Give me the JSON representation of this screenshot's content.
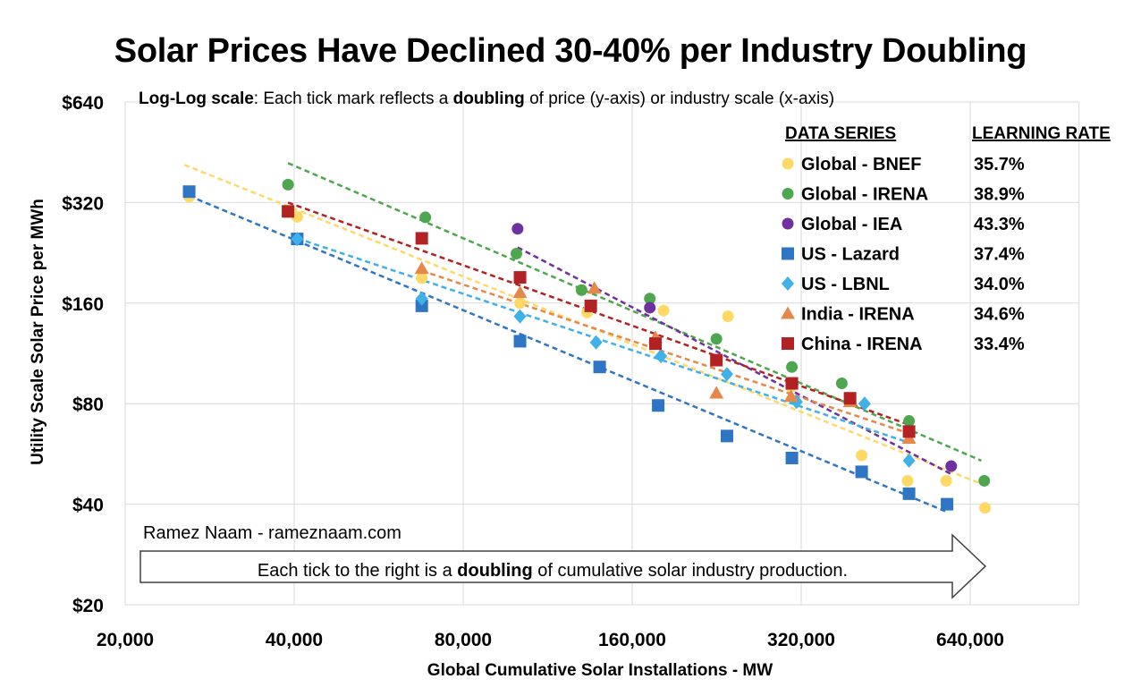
{
  "chart_data": {
    "type": "scatter",
    "title": "Solar Prices Have Declined 30-40% per Industry Doubling",
    "subtitle": {
      "bold_prefix": "Log-Log scale",
      "text_1": ": Each tick mark reflects a ",
      "bold_word": "doubling",
      "text_2": " of price (y-axis) or industry scale (x-axis)"
    },
    "xlabel": "Global Cumulative Solar Installations - MW",
    "ylabel": "Utility Scale Solar Price per MWh",
    "x_scale": "log2",
    "y_scale": "log2",
    "xlim": [
      20000,
      1000000
    ],
    "ylim": [
      20,
      640
    ],
    "x_ticks": [
      20000,
      40000,
      80000,
      160000,
      320000,
      640000
    ],
    "x_tick_labels": [
      "20,000",
      "40,000",
      "80,000",
      "160,000",
      "320,000",
      "640,000"
    ],
    "y_ticks": [
      20,
      40,
      80,
      160,
      320,
      640
    ],
    "y_tick_labels": [
      "$20",
      "$40",
      "$80",
      "$160",
      "$320",
      "$640"
    ],
    "grid": true,
    "legend_placement": "top-right",
    "legend_headers": [
      "DATA SERIES",
      "LEARNING RATE"
    ],
    "series": [
      {
        "name": "Global - BNEF",
        "learning_rate": "35.7%",
        "marker": "circle",
        "color": "#FFD966",
        "points": [
          [
            26000,
            333
          ],
          [
            40500,
            290
          ],
          [
            67500,
            190
          ],
          [
            101000,
            160
          ],
          [
            133000,
            150
          ],
          [
            182000,
            152
          ],
          [
            237000,
            146
          ],
          [
            307000,
            90
          ],
          [
            410000,
            56
          ],
          [
            495000,
            47
          ],
          [
            580000,
            47
          ],
          [
            680000,
            39
          ]
        ],
        "trend": [
          [
            25500,
            415
          ],
          [
            670000,
            46
          ]
        ]
      },
      {
        "name": "Global - IRENA",
        "learning_rate": "38.9%",
        "marker": "circle",
        "color": "#4EA74E",
        "points": [
          [
            39000,
            362
          ],
          [
            68500,
            289
          ],
          [
            99500,
            225
          ],
          [
            130000,
            175
          ],
          [
            172000,
            165
          ],
          [
            226000,
            125
          ],
          [
            308000,
            103
          ],
          [
            378000,
            92
          ],
          [
            498000,
            71
          ],
          [
            678000,
            47
          ]
        ],
        "trend": [
          [
            39000,
            420
          ],
          [
            670000,
            54
          ]
        ]
      },
      {
        "name": "Global - IEA",
        "learning_rate": "43.3%",
        "marker": "circle",
        "color": "#7030A0",
        "points": [
          [
            100000,
            267
          ],
          [
            172000,
            155
          ],
          [
            592000,
            52
          ]
        ],
        "trend": [
          [
            100000,
            235
          ],
          [
            595000,
            49
          ]
        ]
      },
      {
        "name": "US - Lazard",
        "learning_rate": "37.4%",
        "marker": "square",
        "color": "#2E75C4",
        "points": [
          [
            26000,
            345
          ],
          [
            40500,
            249
          ],
          [
            67500,
            157
          ],
          [
            101000,
            123
          ],
          [
            140000,
            103
          ],
          [
            178000,
            79
          ],
          [
            236000,
            64
          ],
          [
            308000,
            55
          ],
          [
            410000,
            50
          ],
          [
            498000,
            43
          ],
          [
            582000,
            40
          ]
        ],
        "trend": [
          [
            26000,
            335
          ],
          [
            580000,
            38
          ]
        ]
      },
      {
        "name": "US - LBNL",
        "learning_rate": "34.0%",
        "marker": "diamond",
        "color": "#3FB0E8",
        "points": [
          [
            40500,
            249
          ],
          [
            67500,
            165
          ],
          [
            101000,
            146
          ],
          [
            138000,
            122
          ],
          [
            180000,
            111
          ],
          [
            236000,
            98
          ],
          [
            314000,
            81
          ],
          [
            415000,
            80
          ],
          [
            498000,
            54
          ]
        ],
        "trend": [
          [
            40500,
            250
          ],
          [
            500000,
            61
          ]
        ]
      },
      {
        "name": "India - IRENA",
        "learning_rate": "34.6%",
        "marker": "triangle",
        "color": "#E4894A",
        "points": [
          [
            67500,
            203
          ],
          [
            101000,
            172
          ],
          [
            137000,
            177
          ],
          [
            176000,
            126
          ],
          [
            226000,
            86
          ],
          [
            307000,
            84
          ],
          [
            391000,
            81
          ],
          [
            498000,
            63
          ]
        ],
        "trend": [
          [
            67500,
            200
          ],
          [
            500000,
            65
          ]
        ]
      },
      {
        "name": "China - IRENA",
        "learning_rate": "33.4%",
        "marker": "square",
        "color": "#B22222",
        "points": [
          [
            39000,
            301
          ],
          [
            67500,
            250
          ],
          [
            101000,
            191
          ],
          [
            135000,
            157
          ],
          [
            176000,
            121
          ],
          [
            226000,
            108
          ],
          [
            308000,
            92
          ],
          [
            391000,
            83
          ],
          [
            498000,
            66
          ]
        ],
        "trend": [
          [
            39000,
            320
          ],
          [
            500000,
            69
          ]
        ]
      }
    ],
    "credit": "Ramez Naam - rameznaam.com",
    "arrow_caption": {
      "text_1": "Each tick to the right is a ",
      "bold_word": "doubling",
      "text_2": " of cumulative solar industry production."
    }
  }
}
